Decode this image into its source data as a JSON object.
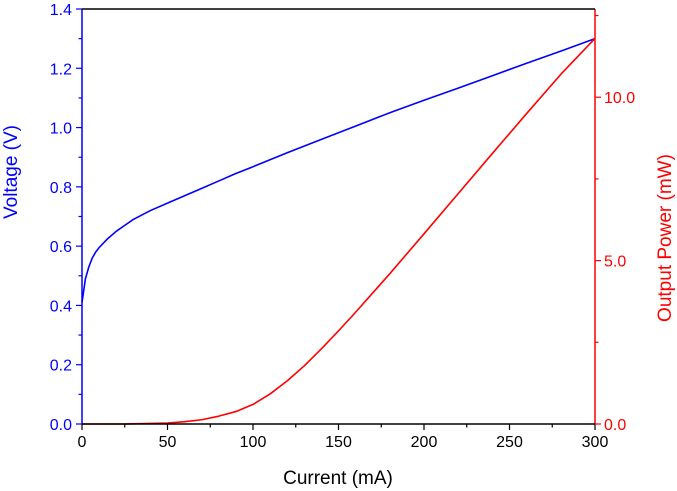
{
  "chart_data": {
    "type": "line",
    "title": "",
    "xlabel": "Current (mA)",
    "ylabel_left": "Voltage (V)",
    "ylabel_right": "Output Power (mW)",
    "xlim": [
      0,
      300
    ],
    "ylim_left": [
      0,
      1.4
    ],
    "ylim_right": [
      0,
      12.7
    ],
    "x_ticks": [
      {
        "value": 0,
        "label": "0"
      },
      {
        "value": 50,
        "label": "50"
      },
      {
        "value": 100,
        "label": "100"
      },
      {
        "value": 150,
        "label": "150"
      },
      {
        "value": 200,
        "label": "200"
      },
      {
        "value": 250,
        "label": "250"
      },
      {
        "value": 300,
        "label": "300"
      }
    ],
    "y_left_ticks": [
      {
        "value": 0.0,
        "label": "0.0"
      },
      {
        "value": 0.2,
        "label": "0.2"
      },
      {
        "value": 0.4,
        "label": "0.4"
      },
      {
        "value": 0.6,
        "label": "0.6"
      },
      {
        "value": 0.8,
        "label": "0.8"
      },
      {
        "value": 1.0,
        "label": "1.0"
      },
      {
        "value": 1.2,
        "label": "1.2"
      },
      {
        "value": 1.4,
        "label": "1.4"
      }
    ],
    "y_right_ticks": [
      {
        "value": 0.0,
        "label": "0.0"
      },
      {
        "value": 5.0,
        "label": "5.0"
      },
      {
        "value": 10.0,
        "label": "10.0"
      }
    ],
    "grid": false,
    "series": [
      {
        "name": "Voltage (V)",
        "axis": "left",
        "color": "#0000ff",
        "x": [
          0,
          1,
          2,
          4,
          6,
          8,
          10,
          15,
          20,
          25,
          30,
          40,
          50,
          60,
          70,
          80,
          90,
          100,
          120,
          140,
          160,
          180,
          200,
          220,
          240,
          260,
          280,
          300
        ],
        "y": [
          0.41,
          0.45,
          0.49,
          0.53,
          0.56,
          0.58,
          0.595,
          0.625,
          0.65,
          0.67,
          0.69,
          0.72,
          0.745,
          0.77,
          0.795,
          0.82,
          0.845,
          0.868,
          0.915,
          0.96,
          1.005,
          1.05,
          1.092,
          1.133,
          1.175,
          1.217,
          1.258,
          1.3
        ]
      },
      {
        "name": "Output Power (mW)",
        "axis": "right",
        "color": "#ff0000",
        "x": [
          0,
          25,
          50,
          60,
          70,
          80,
          90,
          100,
          110,
          120,
          130,
          140,
          150,
          160,
          180,
          200,
          220,
          240,
          260,
          280,
          300
        ],
        "y": [
          0,
          0,
          0.03,
          0.07,
          0.13,
          0.24,
          0.38,
          0.6,
          0.92,
          1.32,
          1.78,
          2.3,
          2.85,
          3.42,
          4.6,
          5.82,
          7.05,
          8.28,
          9.5,
          10.7,
          11.8
        ]
      }
    ]
  },
  "colors": {
    "left_axis": "#0000ff",
    "right_axis": "#ff0000",
    "bottom_axis": "#000000"
  }
}
